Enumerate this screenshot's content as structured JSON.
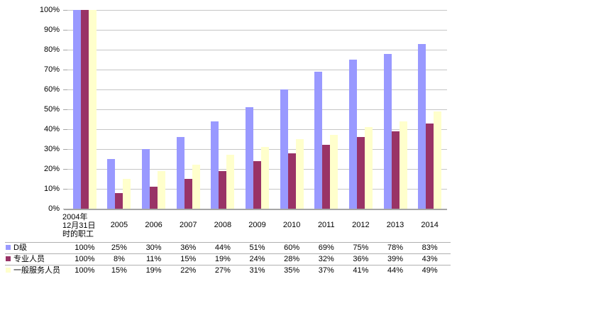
{
  "chart_data": {
    "type": "bar",
    "title": "",
    "categories": [
      "2004年12月31日时的职工",
      "2005",
      "2006",
      "2007",
      "2008",
      "2009",
      "2010",
      "2011",
      "2012",
      "2013",
      "2014"
    ],
    "first_category_display_lines": [
      "2004年",
      "12月31日",
      "时的职工"
    ],
    "series": [
      {
        "name": "D级",
        "key": "d-grade",
        "color": "#9999FF",
        "values": [
          100,
          25,
          30,
          36,
          44,
          51,
          60,
          69,
          75,
          78,
          83
        ]
      },
      {
        "name": "专业人员",
        "key": "professional",
        "color": "#993366",
        "values": [
          100,
          8,
          11,
          15,
          19,
          24,
          28,
          32,
          36,
          39,
          43
        ]
      },
      {
        "name": "一般服务人员",
        "key": "general-service",
        "color": "#FFFFCC",
        "values": [
          100,
          15,
          19,
          22,
          27,
          31,
          35,
          37,
          41,
          44,
          49
        ]
      }
    ],
    "y_axis": {
      "min": 0,
      "max": 100,
      "step": 10,
      "tick_labels": [
        "0%",
        "10%",
        "20%",
        "30%",
        "40%",
        "50%",
        "60%",
        "70%",
        "80%",
        "90%",
        "100%"
      ]
    },
    "value_suffix": "%",
    "grid": true,
    "legend_position": "left-of-data-table",
    "data_table_shown": true
  },
  "colors": {
    "background": "#FFFFFF",
    "gridline": "#C6C6C6",
    "axis_line": "#A6A6A6",
    "table_line": "#B0B0B0",
    "text": "#000000"
  }
}
